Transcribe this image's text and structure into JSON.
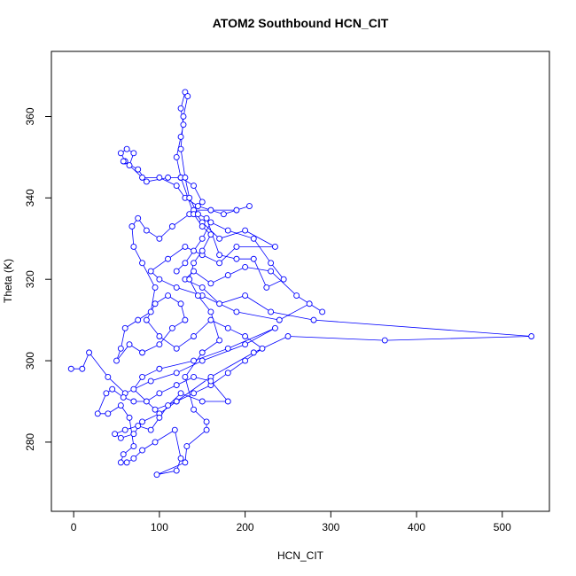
{
  "chart_data": {
    "type": "line",
    "title": "ATOM2 Southbound HCN_CIT",
    "x_label": "HCN_CIT",
    "y_label": "Theta (K)",
    "color": "blue",
    "markers": true,
    "xlim": [
      -26,
      555
    ],
    "ylim": [
      263,
      376
    ],
    "xticks": [
      0,
      100,
      200,
      300,
      400,
      500
    ],
    "yticks": [
      280,
      300,
      320,
      340,
      360
    ],
    "x": [
      -3,
      10,
      18,
      40,
      60,
      90,
      120,
      150,
      200,
      235,
      180,
      140,
      100,
      80,
      70,
      95,
      120,
      160,
      210,
      250,
      363,
      534,
      280,
      230,
      200,
      170,
      150,
      130,
      140,
      160,
      180,
      200,
      230,
      260,
      290,
      275,
      240,
      190,
      150,
      120,
      100,
      90,
      110,
      130,
      150,
      170,
      190,
      235,
      200,
      170,
      150,
      140,
      160,
      190,
      205,
      175,
      145,
      130,
      120,
      100,
      80,
      60,
      55,
      62,
      70,
      65,
      58,
      75,
      85,
      110,
      125,
      140,
      150,
      135,
      115,
      100,
      85,
      75,
      68,
      70,
      80,
      95,
      90,
      75,
      60,
      55,
      50,
      65,
      80,
      100,
      115,
      130,
      125,
      110,
      95,
      85,
      100,
      120,
      140,
      160,
      180,
      200,
      220,
      200,
      180,
      160,
      140,
      120,
      100,
      80,
      70,
      55,
      48,
      60,
      75,
      90,
      100,
      110,
      125,
      150,
      180,
      160,
      140,
      120,
      100,
      85,
      70,
      58,
      45,
      38,
      28,
      40,
      55,
      65,
      70,
      58,
      55,
      62,
      70,
      80,
      95,
      118,
      125,
      120,
      97,
      130,
      132,
      155,
      155,
      140,
      130,
      150,
      170,
      160,
      145,
      135,
      140,
      150,
      160,
      150,
      140,
      125,
      120,
      125,
      128,
      125,
      130,
      133,
      128,
      125,
      130,
      135,
      145,
      155,
      170,
      190,
      210,
      225,
      245,
      230,
      210,
      180,
      160,
      150,
      140,
      130,
      120
    ],
    "values": [
      298,
      298,
      302,
      296,
      292,
      295,
      297,
      300,
      304,
      308,
      303,
      300,
      298,
      296,
      293,
      288,
      290,
      296,
      302,
      306,
      305,
      306,
      310,
      312,
      316,
      314,
      318,
      320,
      322,
      319,
      321,
      323,
      322,
      316,
      312,
      314,
      310,
      312,
      316,
      318,
      320,
      322,
      325,
      328,
      326,
      324,
      328,
      328,
      332,
      330,
      334,
      337,
      337,
      337,
      338,
      336,
      338,
      340,
      343,
      345,
      345,
      349,
      351,
      352,
      351,
      348,
      349,
      347,
      344,
      345,
      345,
      343,
      339,
      336,
      333,
      330,
      332,
      335,
      333,
      328,
      324,
      318,
      312,
      310,
      308,
      303,
      300,
      304,
      302,
      304,
      308,
      310,
      314,
      316,
      314,
      310,
      306,
      303,
      306,
      310,
      308,
      306,
      303,
      300,
      297,
      294,
      292,
      290,
      287,
      285,
      282,
      281,
      282,
      283,
      284,
      283,
      286,
      289,
      292,
      290,
      290,
      295,
      296,
      294,
      292,
      290,
      290,
      291,
      293,
      292,
      287,
      287,
      289,
      286,
      279,
      277,
      275,
      275,
      276,
      278,
      280,
      283,
      276,
      273,
      272,
      275,
      279,
      283,
      285,
      288,
      296,
      302,
      305,
      312,
      316,
      320,
      324,
      327,
      331,
      333,
      336,
      345,
      350,
      355,
      358,
      362,
      366,
      365,
      360,
      352,
      345,
      340,
      336,
      335,
      326,
      325,
      325,
      318,
      320,
      324,
      330,
      332,
      334,
      330,
      327,
      324,
      322
    ]
  }
}
